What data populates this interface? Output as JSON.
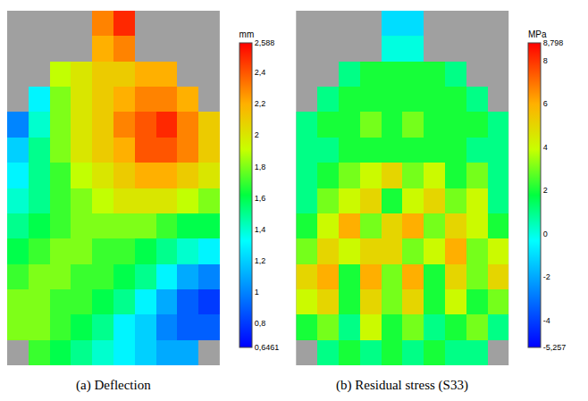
{
  "chart_data": [
    {
      "type": "heatmap",
      "title": "(a) Deflection",
      "tick_labels": false,
      "colorbar": {
        "title": "mm",
        "range": [
          0.6461,
          2.588
        ],
        "ticks": [
          {
            "value": 0.6461,
            "label": "0,6461"
          },
          {
            "value": 0.8,
            "label": "0,8"
          },
          1,
          {
            "value": 1.2,
            "label": "1,2"
          },
          {
            "value": 1.4,
            "label": "1,4"
          },
          {
            "value": 1.6,
            "label": "1,6"
          },
          {
            "value": 1.8,
            "label": "1,8"
          },
          2,
          {
            "value": 2.2,
            "label": "2,2"
          },
          {
            "value": 2.4,
            "label": "2,4"
          },
          {
            "value": 2.588,
            "label": "2,588"
          }
        ]
      },
      "z": [
        [
          null,
          1.7,
          1.6,
          1.5,
          1.4,
          1.3,
          1.2,
          1.1,
          1.1,
          null
        ],
        [
          1.8,
          1.8,
          1.7,
          1.6,
          1.5,
          1.3,
          1.2,
          1.0,
          0.9,
          0.9
        ],
        [
          1.8,
          1.8,
          1.7,
          1.7,
          1.6,
          1.5,
          1.3,
          1.1,
          0.9,
          0.8
        ],
        [
          1.7,
          1.8,
          1.8,
          1.7,
          1.7,
          1.6,
          1.5,
          1.3,
          1.1,
          1.0
        ],
        [
          1.6,
          1.7,
          1.8,
          1.8,
          1.7,
          1.7,
          1.6,
          1.5,
          1.4,
          1.3
        ],
        [
          1.5,
          1.6,
          1.7,
          1.8,
          1.8,
          1.8,
          1.8,
          1.7,
          1.6,
          1.6
        ],
        [
          1.4,
          1.5,
          1.7,
          1.8,
          1.9,
          2.0,
          2.0,
          2.0,
          1.9,
          1.8
        ],
        [
          1.3,
          1.5,
          1.7,
          1.9,
          2.0,
          2.1,
          2.2,
          2.2,
          2.1,
          2.0
        ],
        [
          1.2,
          1.5,
          1.8,
          2.0,
          2.1,
          2.2,
          2.4,
          2.4,
          2.3,
          2.1
        ],
        [
          1.0,
          1.4,
          1.8,
          2.0,
          2.1,
          2.3,
          2.4,
          2.5,
          2.3,
          2.1
        ],
        [
          null,
          1.3,
          1.8,
          2.0,
          2.1,
          2.2,
          2.3,
          2.3,
          2.2,
          null
        ],
        [
          null,
          null,
          1.9,
          2.0,
          2.1,
          2.1,
          2.2,
          2.2,
          null,
          null
        ],
        [
          null,
          null,
          null,
          null,
          2.2,
          2.3,
          null,
          null,
          null,
          null
        ],
        [
          null,
          null,
          null,
          null,
          2.3,
          2.5,
          null,
          null,
          null,
          null
        ]
      ]
    },
    {
      "type": "heatmap",
      "title": "(b) Residual stress (S33)",
      "tick_labels": false,
      "colorbar": {
        "title": "MPa",
        "range": [
          -5.257,
          8.798
        ],
        "ticks": [
          {
            "value": -5.257,
            "label": "-5,257"
          },
          -4,
          -2,
          0,
          2,
          4,
          6,
          8,
          {
            "value": 8.798,
            "label": "8,798"
          }
        ]
      },
      "z": [
        [
          null,
          1,
          2,
          1,
          2,
          1,
          2,
          1,
          1,
          null
        ],
        [
          2,
          3,
          1,
          4,
          2,
          3,
          1,
          2,
          3,
          1
        ],
        [
          4,
          5,
          2,
          5,
          3,
          5,
          2,
          4,
          2,
          3
        ],
        [
          5,
          6,
          2,
          6,
          3,
          6,
          2,
          5,
          3,
          5
        ],
        [
          3,
          5,
          4,
          5,
          5,
          3,
          4,
          6,
          3,
          4
        ],
        [
          2,
          4,
          6,
          3,
          5,
          6,
          3,
          5,
          4,
          2
        ],
        [
          1,
          3,
          4,
          5,
          2,
          4,
          5,
          3,
          4,
          1
        ],
        [
          1,
          2,
          3,
          4,
          5,
          3,
          4,
          2,
          3,
          1
        ],
        [
          1,
          1,
          2,
          2,
          2,
          2,
          2,
          2,
          1,
          1
        ],
        [
          1,
          2,
          2,
          3,
          2,
          3,
          2,
          2,
          2,
          1
        ],
        [
          null,
          1,
          2,
          2,
          2,
          2,
          2,
          2,
          1,
          null
        ],
        [
          null,
          null,
          1,
          2,
          2,
          2,
          2,
          1,
          null,
          null
        ],
        [
          null,
          null,
          null,
          null,
          0,
          0,
          null,
          null,
          null,
          null
        ],
        [
          null,
          null,
          null,
          null,
          -1,
          -1,
          null,
          null,
          null,
          null
        ]
      ]
    }
  ]
}
